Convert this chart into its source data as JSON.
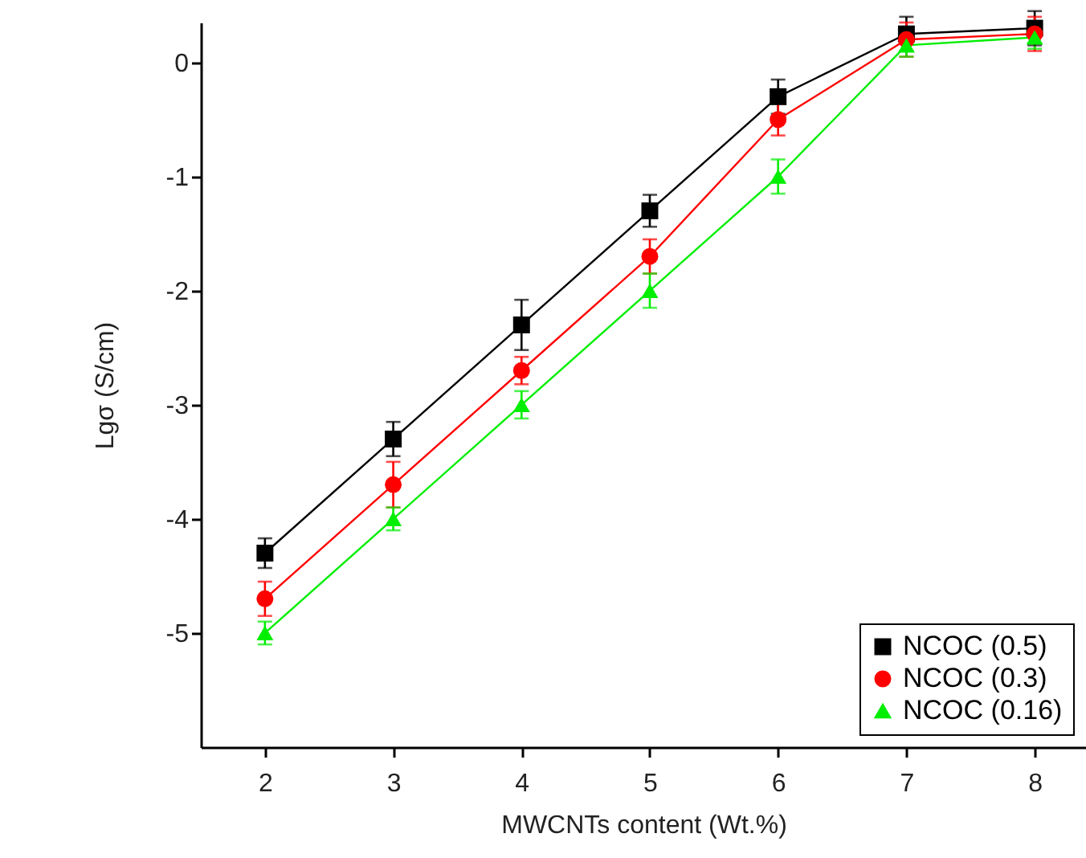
{
  "chart_data": {
    "type": "line",
    "xlabel": "MWCNTs content (Wt.%)",
    "ylabel": "Lgσ (S/cm)",
    "x": [
      2,
      3,
      4,
      5,
      6,
      7,
      8
    ],
    "xlim": [
      1.5,
      8.4
    ],
    "xticks": [
      2,
      3,
      4,
      5,
      6,
      7,
      8
    ],
    "ylim": [
      -6,
      0.35
    ],
    "yticks": [
      -5,
      -4,
      -3,
      -2,
      -1,
      0
    ],
    "grid": false,
    "legend": "bottom right",
    "series": [
      {
        "name": "NCOC (0.5)",
        "color": "#000000",
        "marker": "square",
        "values": [
          -4.3,
          -3.3,
          -2.3,
          -1.3,
          -0.3,
          0.25,
          0.3
        ],
        "errors": [
          0.13,
          0.15,
          0.22,
          0.14,
          0.15,
          0.15,
          0.15
        ]
      },
      {
        "name": "NCOC (0.3)",
        "color": "#ff0000",
        "marker": "circle",
        "values": [
          -4.7,
          -3.7,
          -2.7,
          -1.7,
          -0.5,
          0.2,
          0.25
        ],
        "errors": [
          0.15,
          0.2,
          0.12,
          0.15,
          0.14,
          0.15,
          0.15
        ]
      },
      {
        "name": "NCOC (0.16)",
        "color": "#00ee00",
        "marker": "triangle",
        "values": [
          -5,
          -4,
          -3,
          -2,
          -1,
          0.15,
          0.22
        ],
        "errors": [
          0.1,
          0.1,
          0.12,
          0.15,
          0.15,
          0.1,
          0.1
        ]
      }
    ]
  }
}
